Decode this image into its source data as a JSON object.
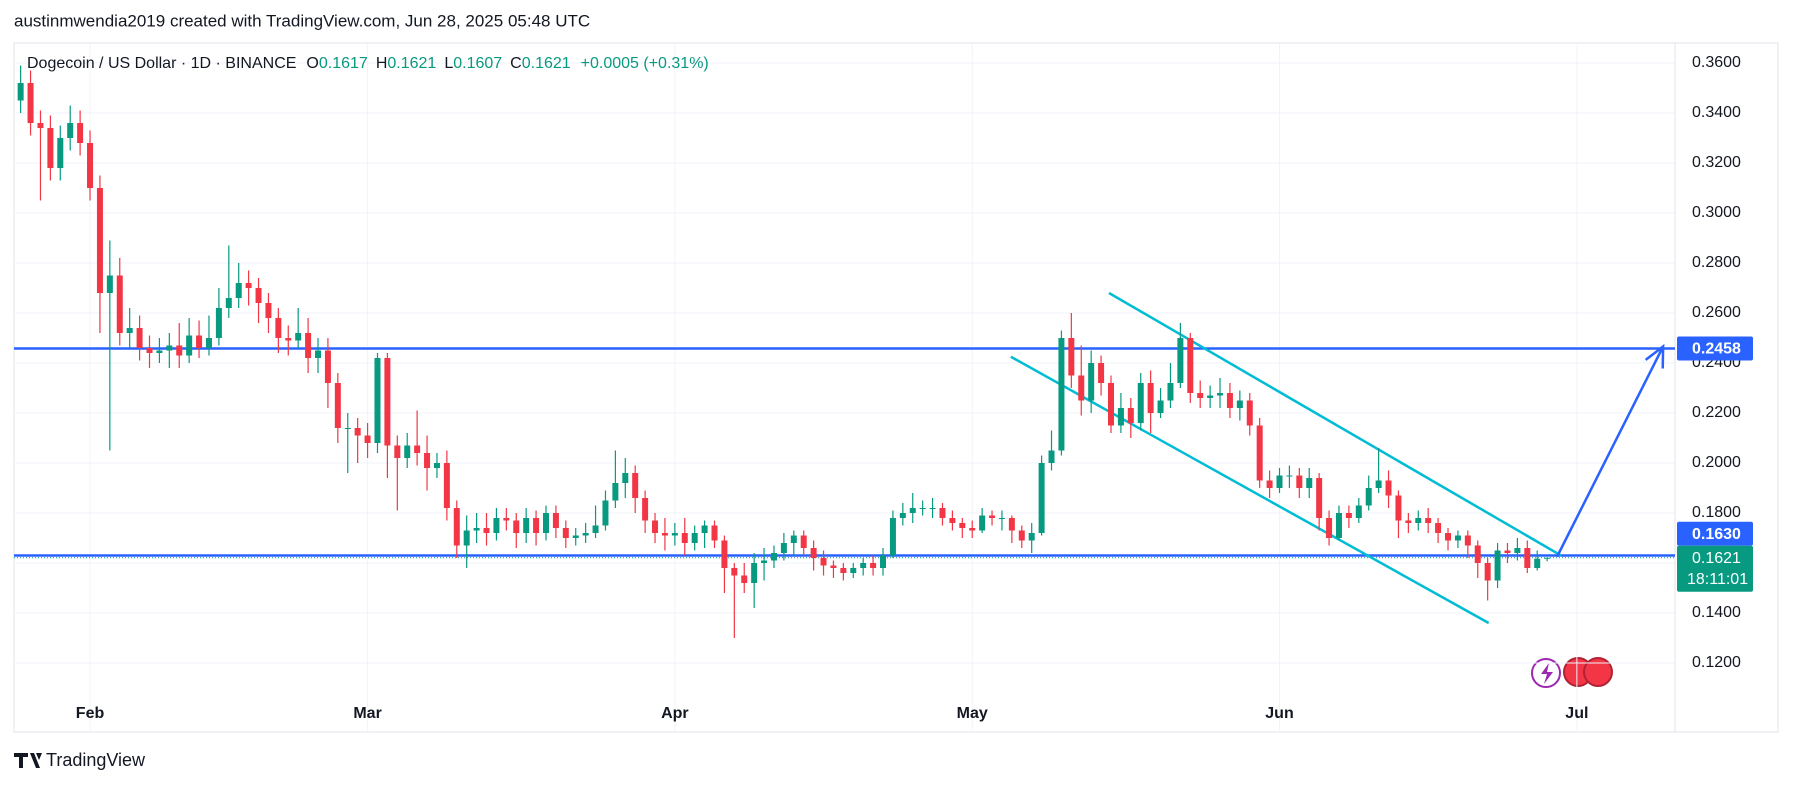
{
  "header": "austinmwendia2019 created with TradingView.com, Jun 28, 2025 05:48 UTC",
  "footer": "TradingView",
  "chart_data": {
    "type": "candlestick",
    "legend": {
      "symbol": "Dogecoin / US Dollar · 1D · BINANCE",
      "letters": [
        "O",
        "H",
        "L",
        "C"
      ],
      "values": [
        0.1617,
        0.1621,
        0.1607,
        0.1621
      ],
      "change": "+0.0005 (+0.31%)"
    },
    "up_color": "#089981",
    "down_color": "#f23645",
    "open": [
      0.345,
      0.352,
      0.336,
      0.334,
      0.318,
      0.33,
      0.336,
      0.328,
      0.31,
      0.268,
      0.275,
      0.252,
      0.254,
      0.246,
      0.244,
      0.245,
      0.247,
      0.243,
      0.251,
      0.246,
      0.25,
      0.262,
      0.266,
      0.272,
      0.27,
      0.264,
      0.258,
      0.25,
      0.249,
      0.252,
      0.242,
      0.245,
      0.232,
      0.214,
      0.214,
      0.211,
      0.208,
      0.242,
      0.207,
      0.202,
      0.207,
      0.204,
      0.198,
      0.2,
      0.182,
      0.167,
      0.173,
      0.174,
      0.172,
      0.178,
      0.177,
      0.172,
      0.178,
      0.172,
      0.18,
      0.174,
      0.17,
      0.171,
      0.172,
      0.175,
      0.185,
      0.192,
      0.196,
      0.186,
      0.177,
      0.172,
      0.171,
      0.172,
      0.168,
      0.172,
      0.175,
      0.169,
      0.158,
      0.155,
      0.152,
      0.16,
      0.161,
      0.164,
      0.168,
      0.171,
      0.166,
      0.162,
      0.159,
      0.158,
      0.156,
      0.158,
      0.16,
      0.158,
      0.163,
      0.178,
      0.18,
      0.182,
      0.182,
      0.182,
      0.178,
      0.176,
      0.174,
      0.173,
      0.179,
      0.178,
      0.178,
      0.173,
      0.169,
      0.172,
      0.2,
      0.205,
      0.25,
      0.235,
      0.225,
      0.24,
      0.232,
      0.215,
      0.222,
      0.216,
      0.232,
      0.22,
      0.225,
      0.232,
      0.25,
      0.228,
      0.226,
      0.227,
      0.228,
      0.222,
      0.225,
      0.215,
      0.193,
      0.19,
      0.195,
      0.195,
      0.19,
      0.194,
      0.178,
      0.17,
      0.18,
      0.178,
      0.183,
      0.19,
      0.193,
      0.187,
      0.177,
      0.176,
      0.178,
      0.176,
      0.172,
      0.169,
      0.171,
      0.167,
      0.16,
      0.153,
      0.165,
      0.164,
      0.166,
      0.158,
      0.1617
    ],
    "high": [
      0.359,
      0.357,
      0.341,
      0.339,
      0.335,
      0.343,
      0.341,
      0.333,
      0.315,
      0.289,
      0.282,
      0.262,
      0.259,
      0.251,
      0.25,
      0.252,
      0.256,
      0.258,
      0.257,
      0.259,
      0.27,
      0.287,
      0.28,
      0.277,
      0.274,
      0.268,
      0.262,
      0.255,
      0.262,
      0.258,
      0.25,
      0.25,
      0.236,
      0.22,
      0.218,
      0.216,
      0.244,
      0.244,
      0.211,
      0.212,
      0.221,
      0.211,
      0.204,
      0.205,
      0.185,
      0.179,
      0.18,
      0.18,
      0.182,
      0.182,
      0.18,
      0.182,
      0.181,
      0.183,
      0.183,
      0.177,
      0.174,
      0.176,
      0.183,
      0.189,
      0.205,
      0.202,
      0.199,
      0.189,
      0.18,
      0.178,
      0.176,
      0.178,
      0.175,
      0.177,
      0.177,
      0.171,
      0.16,
      0.16,
      0.164,
      0.166,
      0.167,
      0.172,
      0.173,
      0.173,
      0.169,
      0.165,
      0.161,
      0.16,
      0.16,
      0.162,
      0.163,
      0.166,
      0.181,
      0.184,
      0.188,
      0.185,
      0.186,
      0.184,
      0.181,
      0.178,
      0.177,
      0.182,
      0.181,
      0.181,
      0.179,
      0.175,
      0.176,
      0.203,
      0.213,
      0.253,
      0.26,
      0.247,
      0.245,
      0.243,
      0.235,
      0.228,
      0.226,
      0.236,
      0.237,
      0.23,
      0.24,
      0.256,
      0.252,
      0.233,
      0.231,
      0.234,
      0.232,
      0.229,
      0.228,
      0.218,
      0.197,
      0.198,
      0.199,
      0.198,
      0.198,
      0.196,
      0.181,
      0.183,
      0.183,
      0.186,
      0.195,
      0.206,
      0.197,
      0.189,
      0.18,
      0.181,
      0.182,
      0.178,
      0.174,
      0.173,
      0.173,
      0.169,
      0.162,
      0.168,
      0.168,
      0.17,
      0.169,
      0.165,
      0.1621
    ],
    "low": [
      0.34,
      0.331,
      0.305,
      0.313,
      0.313,
      0.325,
      0.323,
      0.305,
      0.252,
      0.205,
      0.247,
      0.246,
      0.241,
      0.238,
      0.24,
      0.238,
      0.238,
      0.24,
      0.242,
      0.243,
      0.247,
      0.258,
      0.262,
      0.263,
      0.256,
      0.252,
      0.244,
      0.243,
      0.246,
      0.236,
      0.236,
      0.222,
      0.208,
      0.196,
      0.2,
      0.202,
      0.204,
      0.194,
      0.181,
      0.198,
      0.199,
      0.189,
      0.194,
      0.177,
      0.162,
      0.158,
      0.168,
      0.167,
      0.169,
      0.173,
      0.166,
      0.168,
      0.167,
      0.169,
      0.17,
      0.166,
      0.167,
      0.168,
      0.17,
      0.173,
      0.182,
      0.186,
      0.18,
      0.172,
      0.168,
      0.165,
      0.167,
      0.163,
      0.165,
      0.166,
      0.166,
      0.148,
      0.13,
      0.148,
      0.142,
      0.153,
      0.158,
      0.161,
      0.163,
      0.163,
      0.157,
      0.155,
      0.154,
      0.153,
      0.154,
      0.155,
      0.155,
      0.155,
      0.162,
      0.175,
      0.176,
      0.179,
      0.178,
      0.175,
      0.173,
      0.17,
      0.17,
      0.172,
      0.175,
      0.173,
      0.168,
      0.166,
      0.164,
      0.171,
      0.197,
      0.203,
      0.23,
      0.219,
      0.22,
      0.227,
      0.212,
      0.212,
      0.21,
      0.213,
      0.212,
      0.218,
      0.222,
      0.23,
      0.224,
      0.222,
      0.222,
      0.222,
      0.218,
      0.217,
      0.211,
      0.19,
      0.186,
      0.188,
      0.19,
      0.186,
      0.186,
      0.173,
      0.167,
      0.169,
      0.174,
      0.176,
      0.181,
      0.188,
      0.182,
      0.17,
      0.172,
      0.173,
      0.172,
      0.168,
      0.165,
      0.166,
      0.162,
      0.154,
      0.145,
      0.15,
      0.16,
      0.161,
      0.156,
      0.157,
      0.1607
    ],
    "close": [
      0.352,
      0.336,
      0.334,
      0.318,
      0.33,
      0.336,
      0.328,
      0.31,
      0.268,
      0.275,
      0.252,
      0.254,
      0.246,
      0.244,
      0.245,
      0.247,
      0.243,
      0.251,
      0.246,
      0.25,
      0.262,
      0.266,
      0.272,
      0.27,
      0.264,
      0.258,
      0.25,
      0.249,
      0.252,
      0.242,
      0.245,
      0.232,
      0.214,
      0.214,
      0.211,
      0.208,
      0.242,
      0.207,
      0.202,
      0.207,
      0.204,
      0.198,
      0.2,
      0.182,
      0.167,
      0.173,
      0.174,
      0.172,
      0.178,
      0.177,
      0.172,
      0.178,
      0.172,
      0.18,
      0.174,
      0.17,
      0.171,
      0.172,
      0.175,
      0.185,
      0.192,
      0.196,
      0.186,
      0.177,
      0.172,
      0.171,
      0.172,
      0.168,
      0.172,
      0.175,
      0.169,
      0.158,
      0.155,
      0.152,
      0.16,
      0.161,
      0.164,
      0.168,
      0.171,
      0.166,
      0.162,
      0.159,
      0.158,
      0.156,
      0.158,
      0.16,
      0.158,
      0.163,
      0.178,
      0.18,
      0.182,
      0.182,
      0.182,
      0.178,
      0.176,
      0.174,
      0.173,
      0.179,
      0.178,
      0.178,
      0.173,
      0.169,
      0.172,
      0.2,
      0.205,
      0.25,
      0.235,
      0.225,
      0.24,
      0.232,
      0.215,
      0.222,
      0.216,
      0.232,
      0.22,
      0.225,
      0.232,
      0.25,
      0.228,
      0.226,
      0.227,
      0.228,
      0.222,
      0.225,
      0.215,
      0.193,
      0.19,
      0.195,
      0.195,
      0.19,
      0.194,
      0.178,
      0.17,
      0.18,
      0.178,
      0.183,
      0.19,
      0.193,
      0.187,
      0.177,
      0.176,
      0.178,
      0.176,
      0.172,
      0.169,
      0.171,
      0.167,
      0.16,
      0.153,
      0.165,
      0.164,
      0.166,
      0.158,
      0.1617,
      0.1621
    ],
    "xlim": [
      -0.67,
      166.9
    ],
    "xticks": [
      {
        "value": 7,
        "label": "Feb"
      },
      {
        "value": 35,
        "label": "Mar"
      },
      {
        "value": 66,
        "label": "Apr"
      },
      {
        "value": 96,
        "label": "May"
      },
      {
        "value": 127,
        "label": "Jun"
      },
      {
        "value": 157,
        "label": "Jul"
      }
    ],
    "ylim": [
      0.0924,
      0.368
    ],
    "yticks": [
      {
        "value": 0.12,
        "label": "0.1200"
      },
      {
        "value": 0.14,
        "label": "0.1400"
      },
      {
        "value": 0.16,
        "label": "0.1600"
      },
      {
        "value": 0.18,
        "label": "0.1800"
      },
      {
        "value": 0.2,
        "label": "0.2000"
      },
      {
        "value": 0.22,
        "label": "0.2200"
      },
      {
        "value": 0.24,
        "label": "0.2400"
      },
      {
        "value": 0.26,
        "label": "0.2600"
      },
      {
        "value": 0.28,
        "label": "0.2800"
      },
      {
        "value": 0.3,
        "label": "0.3000"
      },
      {
        "value": 0.32,
        "label": "0.3200"
      },
      {
        "value": 0.34,
        "label": "0.3400"
      },
      {
        "value": 0.36,
        "label": "0.3600"
      }
    ],
    "grid": true,
    "levels": [
      {
        "value": 0.2458,
        "color": "#2962ff"
      },
      {
        "value": 0.163,
        "label": "0.1630",
        "color": "#2962ff"
      }
    ],
    "last_price": {
      "value": 0.1621,
      "countdown": "18:11:01",
      "color": "#089981"
    },
    "trend_lines": [
      {
        "x": [
          99.9,
          148.1
        ],
        "y": [
          0.2425,
          0.136
        ],
        "color": "#00bcd4"
      },
      {
        "x": [
          109.8,
          155.4
        ],
        "y": [
          0.268,
          0.163
        ],
        "color": "#00bcd4"
      }
    ],
    "arrow": {
      "x": [
        155.0,
        165.7
      ],
      "y": [
        0.1625,
        0.2466
      ],
      "color": "#2962ff"
    }
  }
}
